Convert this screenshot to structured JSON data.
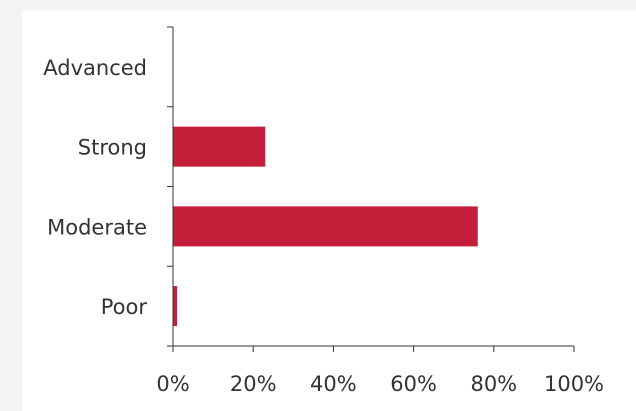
{
  "chart_data": {
    "type": "bar",
    "orientation": "horizontal",
    "categories": [
      "Advanced",
      "Strong",
      "Moderate",
      "Poor"
    ],
    "values": [
      0,
      23,
      76,
      1
    ],
    "unit": "%",
    "xlim": [
      0,
      100
    ],
    "x_ticks": [
      0,
      20,
      40,
      60,
      80,
      100
    ],
    "x_tick_labels": [
      "0%",
      "20%",
      "40%",
      "60%",
      "80%",
      "100%"
    ],
    "title": "",
    "xlabel": "",
    "ylabel": "",
    "grid": false,
    "legend": "none",
    "bar_color": "#c41e3a",
    "background_color": "#f2f3f3"
  }
}
